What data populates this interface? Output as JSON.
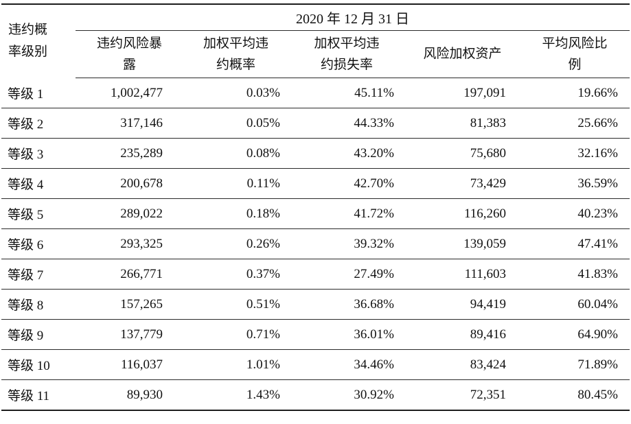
{
  "table": {
    "corner_header": "违约概\n率级别",
    "date_header": "2020 年 12 月 31 日",
    "columns": [
      "违约风险暴\n露",
      "加权平均违\n约概率",
      "加权平均违\n约损失率",
      "风险加权资产",
      "平均风险比\n例"
    ],
    "rows": [
      {
        "grade": "等级 1",
        "exposure": "1,002,477",
        "pd": "0.03%",
        "lgd": "45.11%",
        "rwa": "197,091",
        "risk_ratio": "19.66%"
      },
      {
        "grade": "等级 2",
        "exposure": "317,146",
        "pd": "0.05%",
        "lgd": "44.33%",
        "rwa": "81,383",
        "risk_ratio": "25.66%"
      },
      {
        "grade": "等级 3",
        "exposure": "235,289",
        "pd": "0.08%",
        "lgd": "43.20%",
        "rwa": "75,680",
        "risk_ratio": "32.16%"
      },
      {
        "grade": "等级 4",
        "exposure": "200,678",
        "pd": "0.11%",
        "lgd": "42.70%",
        "rwa": "73,429",
        "risk_ratio": "36.59%"
      },
      {
        "grade": "等级 5",
        "exposure": "289,022",
        "pd": "0.18%",
        "lgd": "41.72%",
        "rwa": "116,260",
        "risk_ratio": "40.23%"
      },
      {
        "grade": "等级 6",
        "exposure": "293,325",
        "pd": "0.26%",
        "lgd": "39.32%",
        "rwa": "139,059",
        "risk_ratio": "47.41%"
      },
      {
        "grade": "等级 7",
        "exposure": "266,771",
        "pd": "0.37%",
        "lgd": "27.49%",
        "rwa": "111,603",
        "risk_ratio": "41.83%"
      },
      {
        "grade": "等级 8",
        "exposure": "157,265",
        "pd": "0.51%",
        "lgd": "36.68%",
        "rwa": "94,419",
        "risk_ratio": "60.04%"
      },
      {
        "grade": "等级 9",
        "exposure": "137,779",
        "pd": "0.71%",
        "lgd": "36.01%",
        "rwa": "89,416",
        "risk_ratio": "64.90%"
      },
      {
        "grade": "等级 10",
        "exposure": "116,037",
        "pd": "1.01%",
        "lgd": "34.46%",
        "rwa": "83,424",
        "risk_ratio": "71.89%"
      },
      {
        "grade": "等级 11",
        "exposure": "89,930",
        "pd": "1.43%",
        "lgd": "30.92%",
        "rwa": "72,351",
        "risk_ratio": "80.45%"
      }
    ]
  }
}
